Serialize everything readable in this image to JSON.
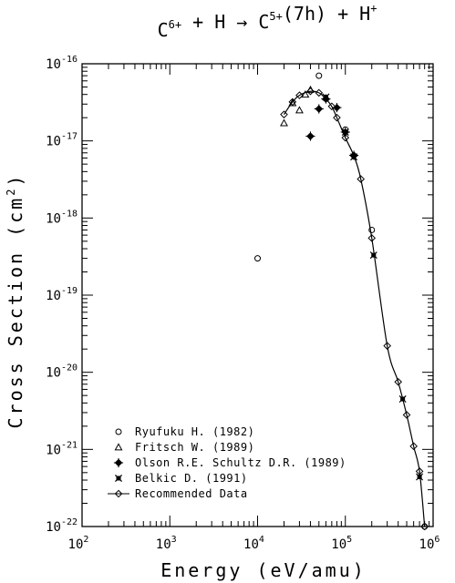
{
  "chart_data": {
    "type": "scatter",
    "title": {
      "parts": [
        {
          "t": "C",
          "sup": false
        },
        {
          "t": "6+",
          "sup": true
        },
        {
          "t": " + H → C",
          "sup": false
        },
        {
          "t": "5+",
          "sup": true
        },
        {
          "t": "(7h) + H",
          "sup": false
        },
        {
          "t": "+",
          "sup": true
        }
      ]
    },
    "xlabel": "Energy (eV/amu)",
    "ylabel": "Cross Section (cm²)",
    "xscale": "log",
    "yscale": "log",
    "xlim": [
      100,
      1000000
    ],
    "ylim": [
      1e-22,
      1e-16
    ],
    "x_ticks": [
      {
        "base": "10",
        "exp": "2",
        "value": 100
      },
      {
        "base": "10",
        "exp": "3",
        "value": 1000
      },
      {
        "base": "10",
        "exp": "4",
        "value": 10000
      },
      {
        "base": "10",
        "exp": "5",
        "value": 100000
      },
      {
        "base": "10",
        "exp": "6",
        "value": 1000000
      }
    ],
    "y_ticks": [
      {
        "base": "10",
        "exp": "-16",
        "value": 1e-16
      },
      {
        "base": "10",
        "exp": "-17",
        "value": 1e-17
      },
      {
        "base": "10",
        "exp": "-18",
        "value": 1e-18
      },
      {
        "base": "10",
        "exp": "-19",
        "value": 1e-19
      },
      {
        "base": "10",
        "exp": "-20",
        "value": 1e-20
      },
      {
        "base": "10",
        "exp": "-21",
        "value": 1e-21
      },
      {
        "base": "10",
        "exp": "-22",
        "value": 1e-22
      }
    ],
    "legend_position": "bottom-left",
    "series": [
      {
        "name": "Ryufuku H. (1982)",
        "marker": "circle",
        "points": [
          [
            10000,
            3e-19
          ],
          [
            50000,
            7e-17
          ],
          [
            100000,
            1.4e-17
          ],
          [
            200000,
            7e-19
          ],
          [
            800000,
            1e-22
          ]
        ]
      },
      {
        "name": "Fritsch W. (1989)",
        "marker": "triangle",
        "points": [
          [
            20000,
            1.7e-17
          ],
          [
            25000,
            3.1e-17
          ],
          [
            30000,
            2.5e-17
          ],
          [
            35000,
            4e-17
          ],
          [
            40000,
            4.6e-17
          ]
        ]
      },
      {
        "name": "Olson R.E. Schultz D.R. (1989)",
        "marker": "diamond-cross",
        "points": [
          [
            40000,
            1.15e-17
          ],
          [
            50000,
            2.6e-17
          ],
          [
            60000,
            3.5e-17
          ],
          [
            80000,
            2.7e-17
          ],
          [
            100000,
            1.3e-17
          ],
          [
            125000,
            6.5e-18
          ]
        ]
      },
      {
        "name": "Belkic D. (1991)",
        "marker": "x-square",
        "points": [
          [
            60000,
            3.7e-17
          ],
          [
            100000,
            1.3e-17
          ],
          [
            125000,
            6.2e-18
          ],
          [
            210000,
            3.3e-19
          ],
          [
            450000,
            4.5e-21
          ],
          [
            700000,
            4.4e-22
          ]
        ]
      },
      {
        "name": "Recommended Data",
        "marker": "diamond",
        "line": true,
        "points": [
          [
            20000,
            2.2e-17
          ],
          [
            25000,
            3.2e-17
          ],
          [
            30000,
            3.9e-17
          ],
          [
            40000,
            4.4e-17
          ],
          [
            50000,
            4.2e-17
          ],
          [
            60000,
            3.5e-17
          ],
          [
            70000,
            2.8e-17
          ],
          [
            80000,
            2e-17
          ],
          [
            100000,
            1.1e-17
          ],
          [
            125000,
            6.4e-18
          ],
          [
            150000,
            3.2e-18
          ],
          [
            200000,
            5.5e-19
          ],
          [
            300000,
            2.2e-20
          ],
          [
            400000,
            7.5e-21
          ],
          [
            500000,
            2.8e-21
          ],
          [
            600000,
            1.1e-21
          ],
          [
            700000,
            5.2e-22
          ],
          [
            800000,
            1e-22
          ]
        ]
      }
    ]
  }
}
